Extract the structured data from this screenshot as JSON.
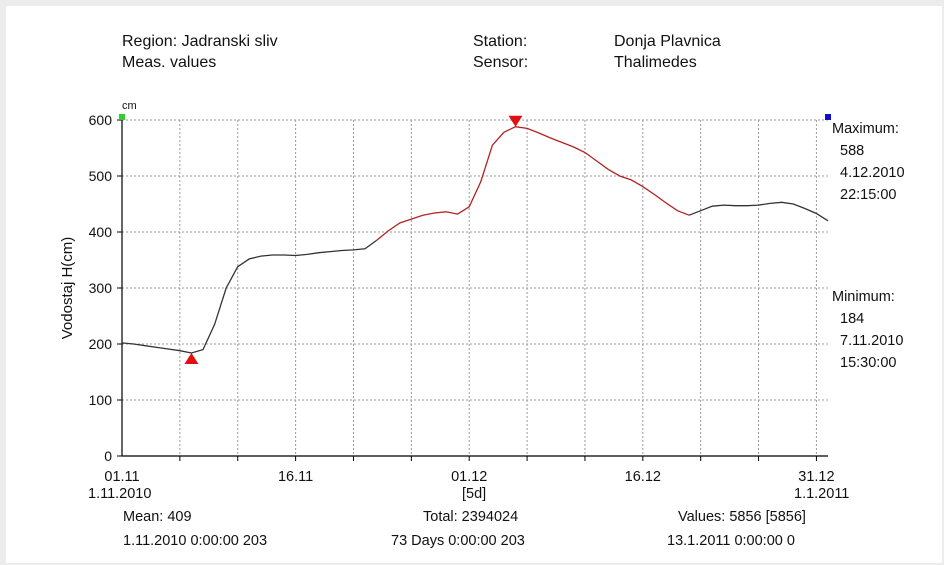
{
  "header": {
    "region": "Region: Jadranski sliv",
    "meas": "Meas. values",
    "station_label": "Station:",
    "station_value": "Donja Plavnica",
    "sensor_label": "Sensor:",
    "sensor_value": "Thalimedes"
  },
  "maximum": {
    "label": "Maximum:",
    "value": "588",
    "date": "4.12.2010",
    "time": "22:15:00"
  },
  "minimum": {
    "label": "Minimum:",
    "value": "184",
    "date": "7.11.2010",
    "time": "15:30:00"
  },
  "x_axis": {
    "start_date": "1.11.2010",
    "interval": "[5d]",
    "end_date": "1.1.2011"
  },
  "stats": {
    "mean": "Mean: 409",
    "mean_detail": "1.11.2010 0:00:00  203",
    "total": "Total: 2394024",
    "total_detail": "73 Days  0:00:00  203",
    "values": "Values: 5856 [5856]",
    "values_detail": "13.1.2011 0:00:00  0"
  },
  "colors": {
    "line": "#333333",
    "highlight": "#b22222",
    "marker": "#e01010",
    "start": "#33cc33",
    "end": "#1010cc"
  },
  "chart_data": {
    "type": "line",
    "title": "",
    "xlabel": "",
    "ylabel": "Vodostaj  H(cm)",
    "unit": "cm",
    "ylim": [
      0,
      600
    ],
    "yticks": [
      0,
      100,
      200,
      300,
      400,
      500,
      600
    ],
    "xlim": [
      "2010-11-01",
      "2011-01-01"
    ],
    "xticks": [
      {
        "date": "2010-11-01",
        "label": "01.11"
      },
      {
        "date": "2010-11-16",
        "label": "16.11"
      },
      {
        "date": "2010-12-01",
        "label": "01.12"
      },
      {
        "date": "2010-12-16",
        "label": "16.12"
      },
      {
        "date": "2010-12-31",
        "label": "31.12"
      }
    ],
    "grid": true,
    "series": [
      {
        "x": [
          "2010-11-01",
          "2010-11-02",
          "2010-11-03",
          "2010-11-04",
          "2010-11-05",
          "2010-11-06",
          "2010-11-07",
          "2010-11-08",
          "2010-11-09",
          "2010-11-10",
          "2010-11-11",
          "2010-11-12",
          "2010-11-13",
          "2010-11-14",
          "2010-11-15",
          "2010-11-16",
          "2010-11-17",
          "2010-11-18",
          "2010-11-19",
          "2010-11-20",
          "2010-11-21",
          "2010-11-22",
          "2010-11-23",
          "2010-11-24",
          "2010-11-25",
          "2010-11-26",
          "2010-11-27",
          "2010-11-28",
          "2010-11-29",
          "2010-11-30",
          "2010-12-01",
          "2010-12-02",
          "2010-12-03",
          "2010-12-04",
          "2010-12-05",
          "2010-12-06",
          "2010-12-07",
          "2010-12-08",
          "2010-12-09",
          "2010-12-10",
          "2010-12-11",
          "2010-12-12",
          "2010-12-13",
          "2010-12-14",
          "2010-12-15",
          "2010-12-16",
          "2010-12-17",
          "2010-12-18",
          "2010-12-19",
          "2010-12-20",
          "2010-12-21",
          "2010-12-22",
          "2010-12-23",
          "2010-12-24",
          "2010-12-25",
          "2010-12-26",
          "2010-12-27",
          "2010-12-28",
          "2010-12-29",
          "2010-12-30",
          "2010-12-31",
          "2011-01-01"
        ],
        "y": [
          202,
          200,
          197,
          194,
          191,
          188,
          184,
          190,
          235,
          300,
          338,
          352,
          357,
          359,
          359,
          358,
          360,
          363,
          365,
          367,
          368,
          370,
          385,
          402,
          416,
          423,
          430,
          434,
          436,
          432,
          445,
          490,
          555,
          578,
          588,
          585,
          577,
          568,
          560,
          552,
          542,
          527,
          512,
          500,
          493,
          481,
          467,
          452,
          438,
          430,
          438,
          446,
          448,
          447,
          447,
          448,
          451,
          453,
          450,
          442,
          433,
          420
        ]
      }
    ]
  }
}
